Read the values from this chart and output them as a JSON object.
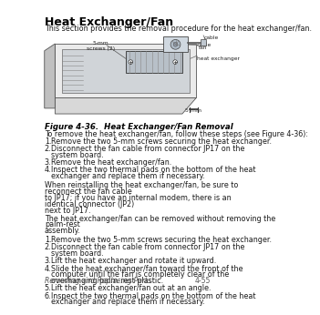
{
  "title": "Heat Exchanger/Fan",
  "subtitle": "This section provides the removal procedure for the heat exchanger/fan.",
  "figure_caption": "Figure 4-36.  Heat Exchanger/Fan Removal",
  "intro_text": "To remove the heat exchanger/fan, follow these steps (see Figure 4-36):",
  "steps_1": [
    "Remove the two 5-mm screws securing the heat exchanger.",
    "Disconnect the fan cable from connector JP17 on the system board.",
    "Remove the heat exchanger/fan.",
    "Inspect the two thermal pads on the bottom of the heat exchanger and replace them if necessary."
  ],
  "warning_text": "When reinstalling the heat exchanger/fan, be sure to reconnect the fan cable\nto JP17; if you have an internal modem, there is an identical connector (JP2)\nnext to JP17.",
  "note_text": "The heat exchanger/fan can be removed without removing the palm-rest\nassembly.",
  "steps_2": [
    "Remove the two 5-mm screws securing the heat exchanger.",
    "Disconnect the fan cable from connector JP17 on the system board.",
    "Lift the heat exchanger and rotate it upward.",
    "Slide the heat exchanger/fan toward the front of the computer until the fan is completely clear of the overhanging palm-rest plastic.",
    "Lift the heat exchanger/fan out at an angle.",
    "Inspect the two thermal pads on the bottom of the heat exchanger and replace them if necessary."
  ],
  "footer_left": "Removing and Replacing Parts",
  "footer_right": "4-55",
  "bg_color": "#ffffff",
  "text_color": "#1a1a1a",
  "title_color": "#000000",
  "body_font_size": 5.8,
  "title_font_size": 9.0,
  "caption_font_size": 6.2,
  "footer_font_size": 5.5,
  "lmargin": 50,
  "rmargin": 285,
  "scale_label": "5 mm",
  "label_screws": "5-mm\nscrews (2)",
  "label_cable": "cable",
  "label_fan": "fan",
  "label_hx": "heat exchanger"
}
